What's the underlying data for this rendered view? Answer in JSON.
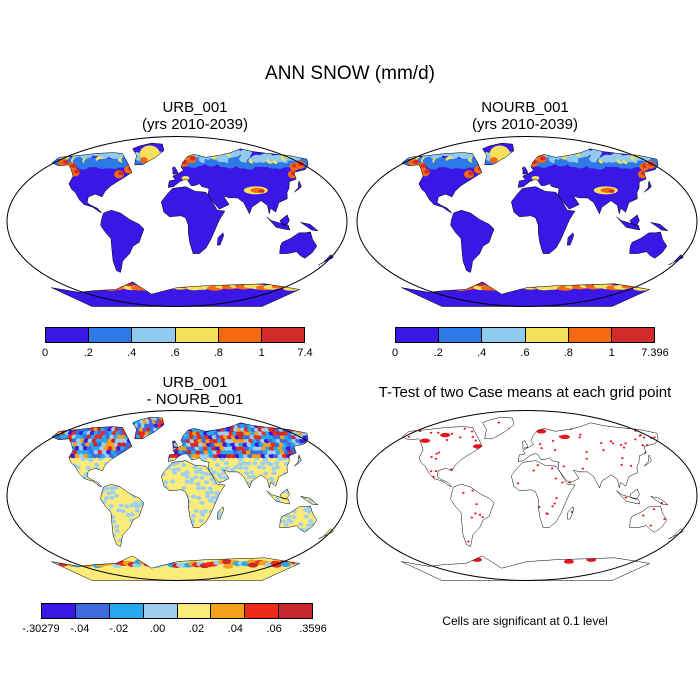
{
  "title": "ANN SNOW (mm/d)",
  "chart_data": [
    {
      "type": "heatmap",
      "title": "URB_001",
      "subtitle": "(yrs 2010-2039)",
      "colorbar": {
        "tick_labels": [
          "0",
          ".2",
          ".4",
          ".6",
          ".8",
          "1",
          "7.4"
        ],
        "colors": [
          "#3a17e6",
          "#2e79e6",
          "#8fcbef",
          "#f6e15c",
          "#f6690e",
          "#d42a2a"
        ]
      }
    },
    {
      "type": "heatmap",
      "title": "NOURB_001",
      "subtitle": "(yrs 2010-2039)",
      "colorbar": {
        "tick_labels": [
          "0",
          ".2",
          ".4",
          ".6",
          ".8",
          "1",
          "7.396"
        ],
        "colors": [
          "#3a17e6",
          "#2e79e6",
          "#8fcbef",
          "#f6e15c",
          "#f6690e",
          "#d42a2a"
        ]
      }
    },
    {
      "type": "heatmap",
      "title": "URB_001",
      "subtitle": "- NOURB_001",
      "colorbar": {
        "tick_labels": [
          "-.30279",
          "-.04",
          "-.02",
          ".00",
          ".02",
          ".04",
          ".06",
          ".3596"
        ],
        "colors": [
          "#3a17e6",
          "#3e6be0",
          "#24a8ef",
          "#9fcfee",
          "#fbec7a",
          "#f4a01a",
          "#ef2a16",
          "#c8282d"
        ]
      }
    },
    {
      "type": "heatmap",
      "title": "T-Test of two Case means at each grid point",
      "note": "Cells are significant at 0.1 level",
      "colors": {
        "significant": "#e8141c"
      }
    }
  ]
}
